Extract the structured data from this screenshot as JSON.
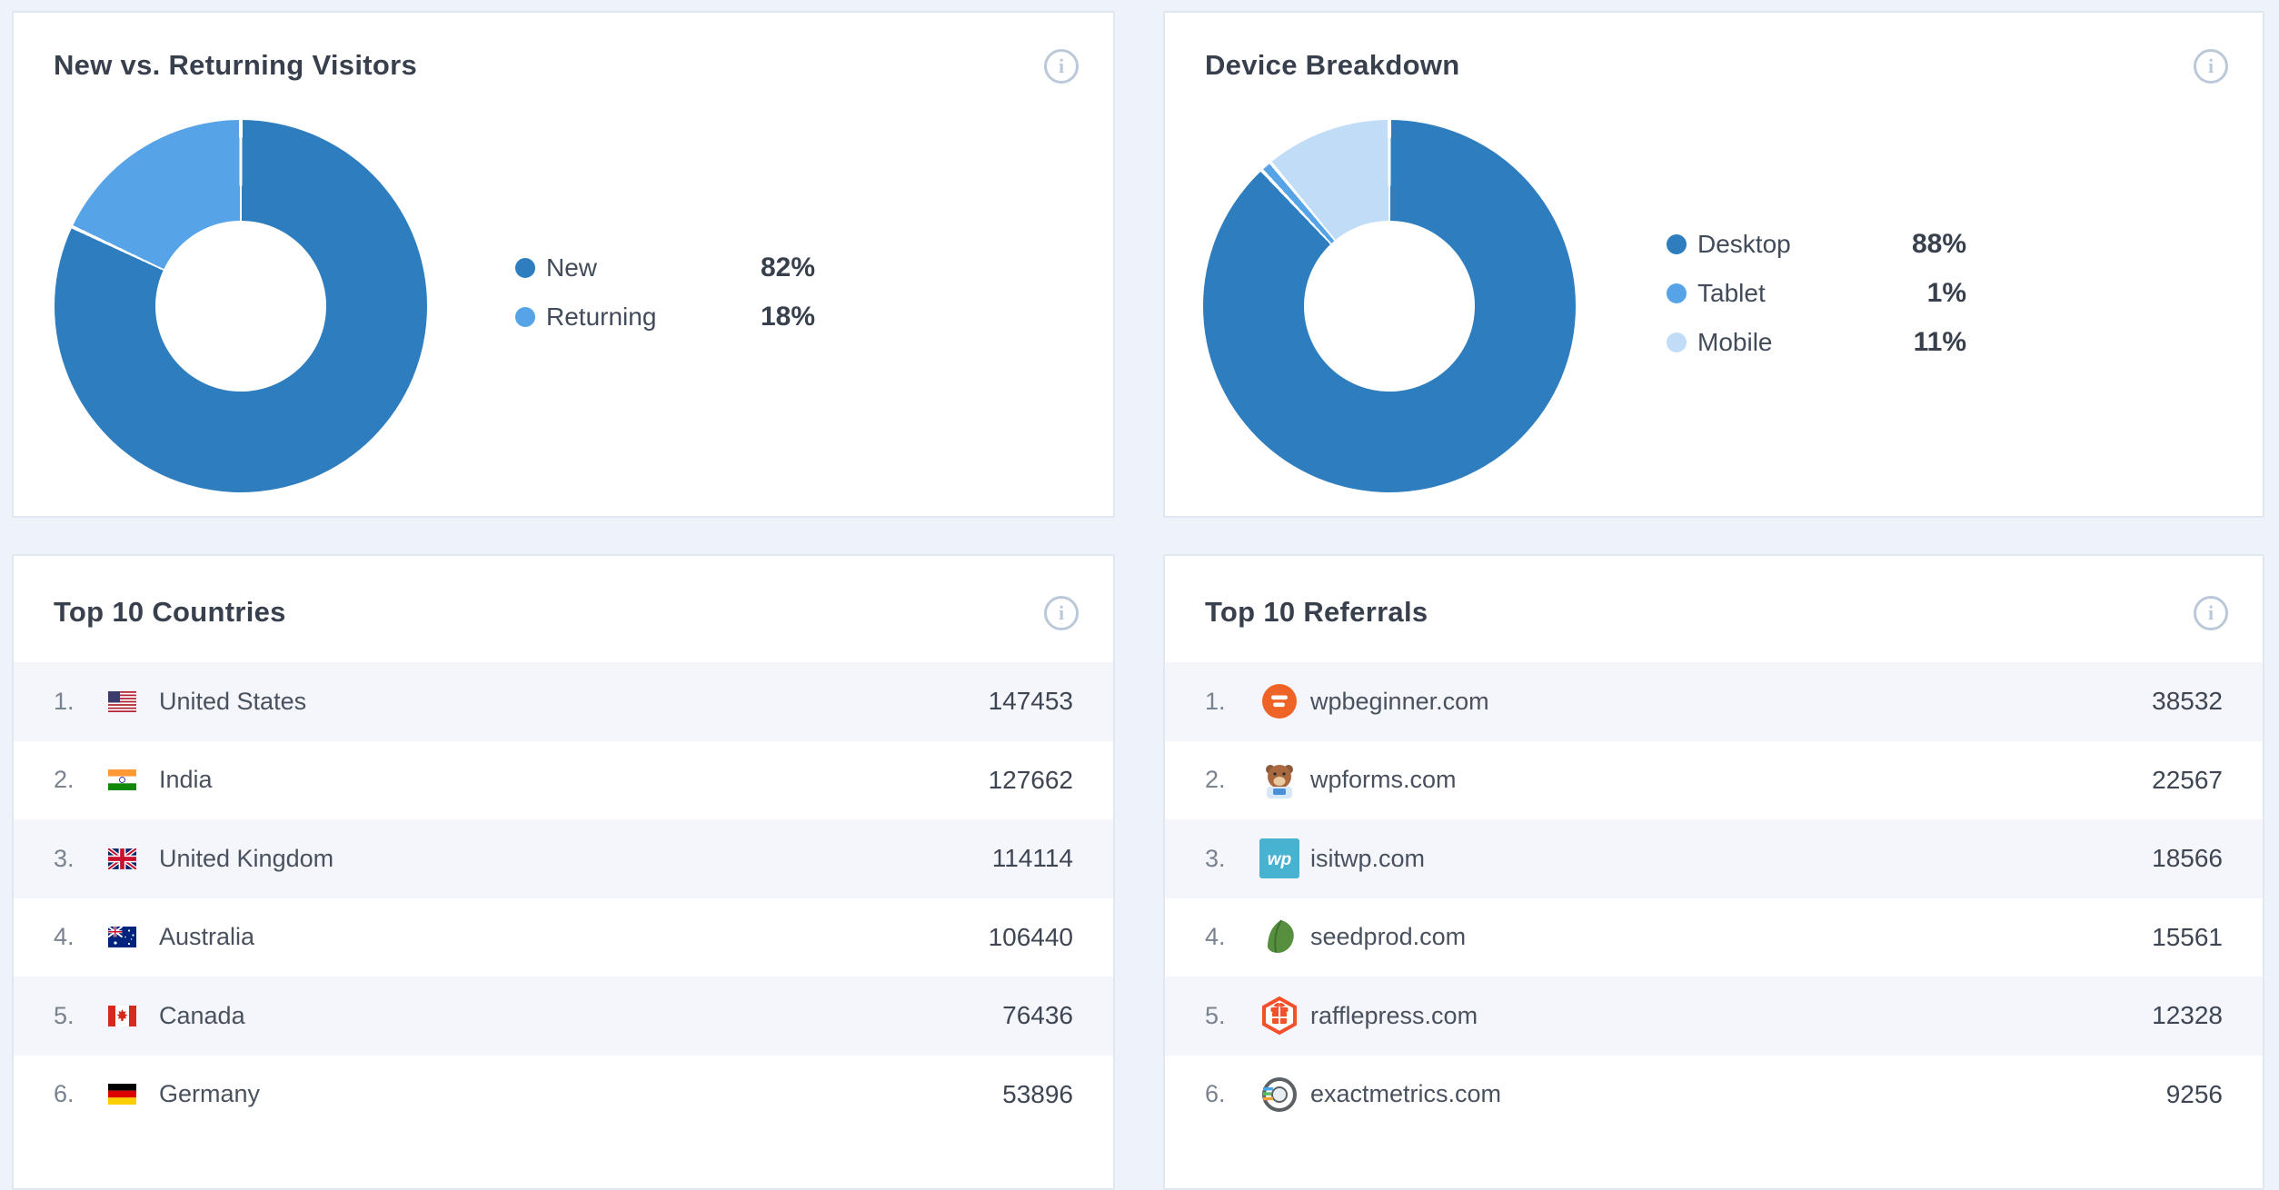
{
  "colors": {
    "page_bg": "#eef3fa",
    "card_border": "#e0e7f0",
    "stripe_bg": "#f4f6fb",
    "accent_dark_blue": "#2d7dbf",
    "accent_mid_blue": "#57a3e8",
    "accent_pale_blue": "#c1dcf6",
    "title_text": "#39404d",
    "info_icon": "#bac8d9"
  },
  "icons": {
    "info_glyph": "i"
  },
  "chart_data": [
    {
      "type": "pie",
      "subtype": "donut",
      "title": "New vs. Returning Visitors",
      "labels": [
        "New",
        "Returning"
      ],
      "values": [
        82,
        18
      ],
      "unit": "%",
      "colors": [
        "#2d7dbf",
        "#57a3e8"
      ],
      "legend_position": "right",
      "start_angle_deg": 0,
      "direction": "clockwise"
    },
    {
      "type": "pie",
      "subtype": "donut",
      "title": "Device Breakdown",
      "labels": [
        "Desktop",
        "Tablet",
        "Mobile"
      ],
      "values": [
        88,
        1,
        11
      ],
      "unit": "%",
      "colors": [
        "#2d7dbf",
        "#57a3e8",
        "#c1dcf6"
      ],
      "legend_position": "right",
      "start_angle_deg": 0,
      "direction": "clockwise"
    }
  ],
  "lists": {
    "countries": {
      "title": "Top 10 Countries",
      "rows": [
        {
          "rank": "1.",
          "icon": "us-flag",
          "label": "United States",
          "value": "147453"
        },
        {
          "rank": "2.",
          "icon": "india-flag",
          "label": "India",
          "value": "127662"
        },
        {
          "rank": "3.",
          "icon": "uk-flag",
          "label": "United Kingdom",
          "value": "114114"
        },
        {
          "rank": "4.",
          "icon": "australia-flag",
          "label": "Australia",
          "value": "106440"
        },
        {
          "rank": "5.",
          "icon": "canada-flag",
          "label": "Canada",
          "value": "76436"
        },
        {
          "rank": "6.",
          "icon": "germany-flag",
          "label": "Germany",
          "value": "53896"
        }
      ]
    },
    "referrals": {
      "title": "Top 10 Referrals",
      "rows": [
        {
          "rank": "1.",
          "icon": "wpbeginner-favicon",
          "label": "wpbeginner.com",
          "value": "38532"
        },
        {
          "rank": "2.",
          "icon": "wpforms-favicon",
          "label": "wpforms.com",
          "value": "22567"
        },
        {
          "rank": "3.",
          "icon": "isitwp-favicon",
          "label": "isitwp.com",
          "value": "18566"
        },
        {
          "rank": "4.",
          "icon": "seedprod-favicon",
          "label": "seedprod.com",
          "value": "15561"
        },
        {
          "rank": "5.",
          "icon": "rafflepress-favicon",
          "label": "rafflepress.com",
          "value": "12328"
        },
        {
          "rank": "6.",
          "icon": "exactmetrics-favicon",
          "label": "exactmetrics.com",
          "value": "9256"
        }
      ]
    }
  }
}
